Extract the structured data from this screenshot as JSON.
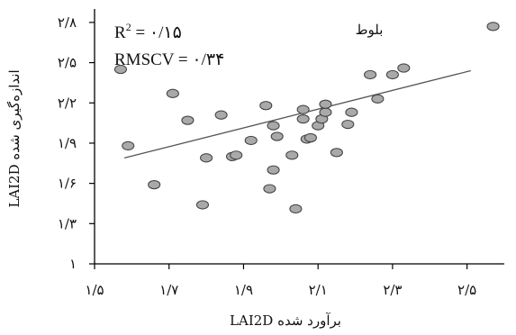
{
  "chart_data": {
    "type": "scatter",
    "title": "",
    "series_label": "بلوط",
    "xlabel": "LAI2D برآورد شده",
    "ylabel": "LAI2D اندازه‌گیری شده",
    "xlim": [
      1.5,
      2.6
    ],
    "ylim": [
      1.0,
      2.9
    ],
    "x_ticks": [
      {
        "value": 1.5,
        "label": "۱/۵"
      },
      {
        "value": 1.7,
        "label": "۱/۷"
      },
      {
        "value": 1.9,
        "label": "۱/۹"
      },
      {
        "value": 2.1,
        "label": "۲/۱"
      },
      {
        "value": 2.3,
        "label": "۲/۳"
      },
      {
        "value": 2.5,
        "label": "۲/۵"
      }
    ],
    "y_ticks": [
      {
        "value": 1.0,
        "label": "۱"
      },
      {
        "value": 1.3,
        "label": "۱/۳"
      },
      {
        "value": 1.6,
        "label": "۱/۶"
      },
      {
        "value": 1.9,
        "label": "۱/۹"
      },
      {
        "value": 2.2,
        "label": "۲/۲"
      },
      {
        "value": 2.5,
        "label": "۲/۵"
      },
      {
        "value": 2.8,
        "label": "۲/۸"
      }
    ],
    "grid": false,
    "r2": {
      "name": "R",
      "exponent": "2",
      "rest": " = ۰/۱۵"
    },
    "rmscv_text": "RMSCV = ۰/۳۴",
    "trendline": {
      "x": [
        1.58,
        2.51
      ],
      "y": [
        1.79,
        2.44
      ]
    },
    "points": [
      {
        "x": 1.57,
        "y": 2.45
      },
      {
        "x": 1.59,
        "y": 1.88
      },
      {
        "x": 1.66,
        "y": 1.59
      },
      {
        "x": 1.71,
        "y": 2.27
      },
      {
        "x": 1.75,
        "y": 2.07
      },
      {
        "x": 1.79,
        "y": 1.44
      },
      {
        "x": 1.8,
        "y": 1.79
      },
      {
        "x": 1.84,
        "y": 2.11
      },
      {
        "x": 1.87,
        "y": 1.8
      },
      {
        "x": 1.88,
        "y": 1.81
      },
      {
        "x": 1.92,
        "y": 1.92
      },
      {
        "x": 1.96,
        "y": 2.18
      },
      {
        "x": 1.97,
        "y": 1.56
      },
      {
        "x": 1.98,
        "y": 1.7
      },
      {
        "x": 1.98,
        "y": 2.03
      },
      {
        "x": 1.99,
        "y": 1.95
      },
      {
        "x": 2.03,
        "y": 1.81
      },
      {
        "x": 2.04,
        "y": 1.41
      },
      {
        "x": 2.06,
        "y": 2.08
      },
      {
        "x": 2.06,
        "y": 2.15
      },
      {
        "x": 2.07,
        "y": 1.93
      },
      {
        "x": 2.08,
        "y": 1.94
      },
      {
        "x": 2.1,
        "y": 2.03
      },
      {
        "x": 2.11,
        "y": 2.08
      },
      {
        "x": 2.12,
        "y": 2.13
      },
      {
        "x": 2.12,
        "y": 2.19
      },
      {
        "x": 2.15,
        "y": 1.83
      },
      {
        "x": 2.18,
        "y": 2.04
      },
      {
        "x": 2.19,
        "y": 2.13
      },
      {
        "x": 2.24,
        "y": 2.41
      },
      {
        "x": 2.26,
        "y": 2.23
      },
      {
        "x": 2.3,
        "y": 2.41
      },
      {
        "x": 2.33,
        "y": 2.46
      },
      {
        "x": 2.57,
        "y": 2.77
      }
    ]
  }
}
